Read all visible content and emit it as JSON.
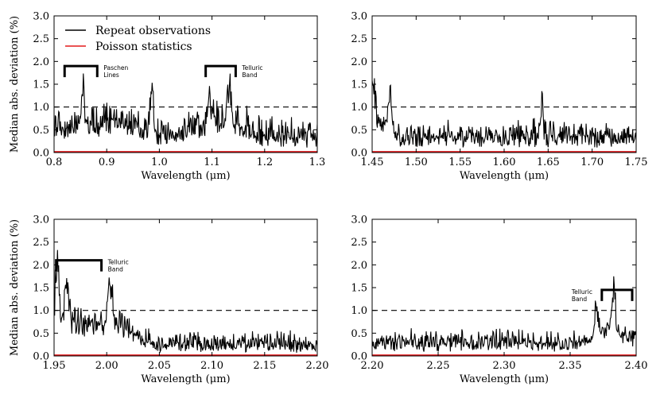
{
  "colors": {
    "repeat": "#000000",
    "poisson": "#e41a1c",
    "frame": "#000000"
  },
  "chart_data": [
    {
      "type": "line",
      "panel": "top-left",
      "xlabel": "Wavelength (μm)",
      "ylabel": "Median abs. deviation (%)",
      "xlim": [
        0.8,
        1.3
      ],
      "ylim": [
        0.0,
        3.0
      ],
      "xticks": [
        "0.8",
        "0.9",
        "1.0",
        "1.1",
        "1.2",
        "1.3"
      ],
      "yticks": [
        "0.0",
        "0.5",
        "1.0",
        "1.5",
        "2.0",
        "2.5",
        "3.0"
      ],
      "reference_line": 1.0,
      "legend": {
        "placement": "top-left",
        "entries": [
          "Repeat observations",
          "Poisson statistics"
        ]
      },
      "annotations": [
        {
          "text": [
            "Paschen",
            "Lines"
          ],
          "x_start": 0.82,
          "x_end": 0.882,
          "y": 1.9
        },
        {
          "text": [
            "Telluric",
            "Band"
          ],
          "x_start": 1.088,
          "x_end": 1.145,
          "y": 1.9
        }
      ],
      "series": [
        {
          "name": "Repeat observations",
          "color": "#000000",
          "baseline": 0.28,
          "noise": 0.22,
          "n": 460,
          "features": [
            {
              "center": 0.87,
              "width": 0.05,
              "amp": 0.35
            },
            {
              "center": 0.855,
              "width": 0.002,
              "amp": 1.2
            },
            {
              "center": 0.94,
              "width": 0.03,
              "amp": 0.2
            },
            {
              "center": 0.985,
              "width": 0.003,
              "amp": 1.1
            },
            {
              "center": 1.115,
              "width": 0.04,
              "amp": 0.45
            },
            {
              "center": 1.132,
              "width": 0.004,
              "amp": 0.9
            },
            {
              "center": 1.095,
              "width": 0.002,
              "amp": 0.8
            }
          ]
        },
        {
          "name": "Poisson statistics",
          "color": "#e41a1c",
          "level": 0.02
        }
      ]
    },
    {
      "type": "line",
      "panel": "top-right",
      "xlabel": "Wavelength (μm)",
      "ylabel": "",
      "xlim": [
        1.45,
        1.75
      ],
      "ylim": [
        0.0,
        3.0
      ],
      "xticks": [
        "1.45",
        "1.50",
        "1.55",
        "1.60",
        "1.65",
        "1.70",
        "1.75"
      ],
      "yticks": [
        "0.0",
        "0.5",
        "1.0",
        "1.5",
        "2.0",
        "2.5",
        "3.0"
      ],
      "reference_line": 1.0,
      "annotations": [],
      "series": [
        {
          "name": "Repeat observations",
          "color": "#000000",
          "baseline": 0.3,
          "noise": 0.18,
          "n": 460,
          "features": [
            {
              "center": 1.455,
              "width": 0.012,
              "amp": 0.35
            },
            {
              "center": 1.451,
              "width": 0.002,
              "amp": 1.0
            },
            {
              "center": 1.47,
              "width": 0.002,
              "amp": 1.0
            },
            {
              "center": 1.643,
              "width": 0.0015,
              "amp": 1.0
            }
          ]
        },
        {
          "name": "Poisson statistics",
          "color": "#e41a1c",
          "level": 0.02
        }
      ]
    },
    {
      "type": "line",
      "panel": "bottom-left",
      "xlabel": "Wavelength (μm)",
      "ylabel": "Median abs. deviation (%)",
      "xlim": [
        1.95,
        2.2
      ],
      "ylim": [
        0.0,
        3.0
      ],
      "xticks": [
        "1.95",
        "2.00",
        "2.05",
        "2.10",
        "2.15",
        "2.20"
      ],
      "yticks": [
        "0.0",
        "0.5",
        "1.0",
        "1.5",
        "2.0",
        "2.5",
        "3.0"
      ],
      "reference_line": 1.0,
      "annotations": [
        {
          "text": [
            "Telluric",
            "Band"
          ],
          "x_start": 1.952,
          "x_end": 1.995,
          "y": 2.1
        }
      ],
      "series": [
        {
          "name": "Repeat observations",
          "color": "#000000",
          "baseline": 0.2,
          "noise": 0.15,
          "n": 460,
          "features": [
            {
              "center": 1.975,
              "width": 0.03,
              "amp": 0.55
            },
            {
              "center": 1.953,
              "width": 0.002,
              "amp": 1.5
            },
            {
              "center": 1.962,
              "width": 0.002,
              "amp": 1.2
            },
            {
              "center": 2.003,
              "width": 0.002,
              "amp": 1.0
            },
            {
              "center": 2.015,
              "width": 0.01,
              "amp": 0.25
            }
          ]
        },
        {
          "name": "Poisson statistics",
          "color": "#e41a1c",
          "level": 0.02
        }
      ]
    },
    {
      "type": "line",
      "panel": "bottom-right",
      "xlabel": "Wavelength (μm)",
      "ylabel": "",
      "xlim": [
        2.2,
        2.4
      ],
      "ylim": [
        0.0,
        3.0
      ],
      "xticks": [
        "2.20",
        "2.25",
        "2.30",
        "2.35",
        "2.40"
      ],
      "yticks": [
        "0.0",
        "0.5",
        "1.0",
        "1.5",
        "2.0",
        "2.5",
        "3.0"
      ],
      "reference_line": 1.0,
      "annotations": [
        {
          "text": [
            "Telluric",
            "Band"
          ],
          "x_start": 2.374,
          "x_end": 2.397,
          "y": 1.45
        }
      ],
      "series": [
        {
          "name": "Repeat observations",
          "color": "#000000",
          "baseline": 0.25,
          "noise": 0.14,
          "n": 460,
          "features": [
            {
              "center": 2.38,
              "width": 0.01,
              "amp": 0.3
            },
            {
              "center": 2.383,
              "width": 0.0012,
              "amp": 1.1
            },
            {
              "center": 2.37,
              "width": 0.0012,
              "amp": 0.7
            }
          ]
        },
        {
          "name": "Poisson statistics",
          "color": "#e41a1c",
          "level": 0.02
        }
      ]
    }
  ]
}
